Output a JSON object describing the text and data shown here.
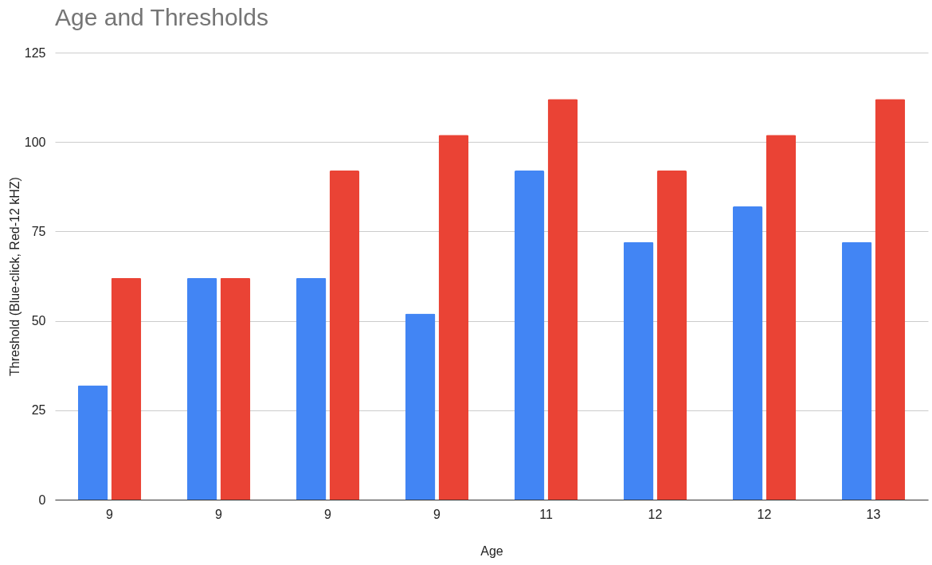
{
  "chart_data": {
    "type": "bar",
    "title": "Age and Thresholds",
    "xlabel": "Age",
    "ylabel": "Threshold (Blue-click, Red-12 kHZ)",
    "categories": [
      "9",
      "9",
      "9",
      "9",
      "11",
      "12",
      "12",
      "13"
    ],
    "series": [
      {
        "color": "#4285f4",
        "values": [
          32,
          62,
          62,
          52,
          92,
          72,
          82,
          72
        ]
      },
      {
        "color": "#ea4335",
        "values": [
          62,
          62,
          92,
          102,
          112,
          92,
          102,
          112
        ]
      }
    ],
    "ylim": [
      0,
      125
    ],
    "yticks": [
      0,
      25,
      50,
      75,
      100,
      125
    ],
    "grid": "y",
    "legend": false
  }
}
